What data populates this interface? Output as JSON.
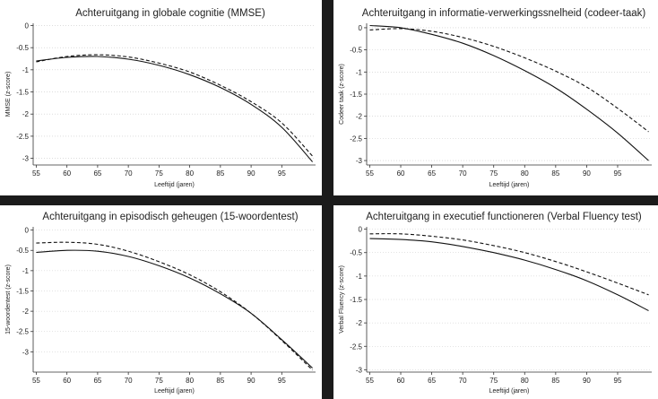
{
  "chart_data": [
    {
      "type": "line",
      "title": "Achteruitgang in globale cognitie (MMSE)",
      "xlabel": "Leeftijd (jaren)",
      "ylabel": "MMSE (z-score)",
      "x_ticks": [
        55,
        60,
        65,
        70,
        75,
        80,
        85,
        90,
        95
      ],
      "y_ticks": [
        0,
        -0.5,
        -1,
        -1.5,
        -2,
        -2.5,
        -3
      ],
      "xlim": [
        54.5,
        100.5
      ],
      "ylim": [
        -3.15,
        0.05
      ],
      "x": [
        55,
        60,
        65,
        70,
        75,
        80,
        85,
        90,
        95,
        100
      ],
      "series": [
        {
          "name": "solid",
          "style": "solid",
          "values": [
            -0.8,
            -0.72,
            -0.7,
            -0.76,
            -0.9,
            -1.11,
            -1.4,
            -1.78,
            -2.3,
            -3.08
          ]
        },
        {
          "name": "dashed",
          "style": "dashed",
          "values": [
            -0.82,
            -0.7,
            -0.66,
            -0.71,
            -0.85,
            -1.05,
            -1.35,
            -1.72,
            -2.2,
            -2.95
          ]
        }
      ]
    },
    {
      "type": "line",
      "title": "Achteruitgang in informatie-verwerkingssnelheid (codeer-taak)",
      "xlabel": "Leeftijd (jaren)",
      "ylabel": "Codeer taak (z-score)",
      "x_ticks": [
        55,
        60,
        65,
        70,
        75,
        80,
        85,
        90,
        95
      ],
      "y_ticks": [
        0,
        -0.5,
        -1,
        -1.5,
        -2,
        -2.5,
        -3
      ],
      "xlim": [
        54.5,
        100.5
      ],
      "ylim": [
        -3.1,
        0.1
      ],
      "x": [
        55,
        60,
        65,
        70,
        75,
        80,
        85,
        90,
        95,
        100
      ],
      "series": [
        {
          "name": "solid",
          "style": "solid",
          "values": [
            0.05,
            0.0,
            -0.15,
            -0.35,
            -0.63,
            -0.97,
            -1.36,
            -1.84,
            -2.38,
            -3.0
          ]
        },
        {
          "name": "dashed",
          "style": "dashed",
          "values": [
            -0.05,
            -0.02,
            -0.08,
            -0.22,
            -0.42,
            -0.68,
            -0.98,
            -1.34,
            -1.82,
            -2.35
          ]
        }
      ]
    },
    {
      "type": "line",
      "title": "Achteruitgang in episodisch geheugen (15-woordentest)",
      "xlabel": "Leeftijd (jaren)",
      "ylabel": "15-woordentest (z-score)",
      "x_ticks": [
        55,
        60,
        65,
        70,
        75,
        80,
        85,
        90,
        95
      ],
      "y_ticks": [
        0,
        -0.5,
        -1,
        -1.5,
        -2,
        -2.5,
        -3
      ],
      "xlim": [
        54.5,
        100.5
      ],
      "ylim": [
        -3.5,
        0.08
      ],
      "x": [
        55,
        60,
        65,
        70,
        75,
        80,
        85,
        90,
        95,
        100
      ],
      "series": [
        {
          "name": "solid",
          "style": "solid",
          "values": [
            -0.55,
            -0.5,
            -0.52,
            -0.65,
            -0.88,
            -1.18,
            -1.57,
            -2.05,
            -2.7,
            -3.4
          ]
        },
        {
          "name": "dashed",
          "style": "dashed",
          "values": [
            -0.32,
            -0.3,
            -0.35,
            -0.52,
            -0.78,
            -1.1,
            -1.52,
            -2.05,
            -2.72,
            -3.45
          ]
        }
      ]
    },
    {
      "type": "line",
      "title": "Achteruitgang in executief functioneren (Verbal Fluency test)",
      "xlabel": "Leeftijd (jaren)",
      "ylabel": "Verbal Fluency (z-score)",
      "x_ticks": [
        55,
        60,
        65,
        70,
        75,
        80,
        85,
        90,
        95
      ],
      "y_ticks": [
        0,
        -0.5,
        -1,
        -1.5,
        -2,
        -2.5,
        -3
      ],
      "xlim": [
        54.5,
        100.5
      ],
      "ylim": [
        -3.05,
        0.05
      ],
      "x": [
        55,
        60,
        65,
        70,
        75,
        80,
        85,
        90,
        95,
        100
      ],
      "series": [
        {
          "name": "solid",
          "style": "solid",
          "values": [
            -0.2,
            -0.22,
            -0.27,
            -0.37,
            -0.5,
            -0.66,
            -0.86,
            -1.1,
            -1.4,
            -1.74
          ]
        },
        {
          "name": "dashed",
          "style": "dashed",
          "values": [
            -0.1,
            -0.1,
            -0.15,
            -0.23,
            -0.35,
            -0.5,
            -0.69,
            -0.91,
            -1.15,
            -1.4
          ]
        }
      ]
    }
  ]
}
